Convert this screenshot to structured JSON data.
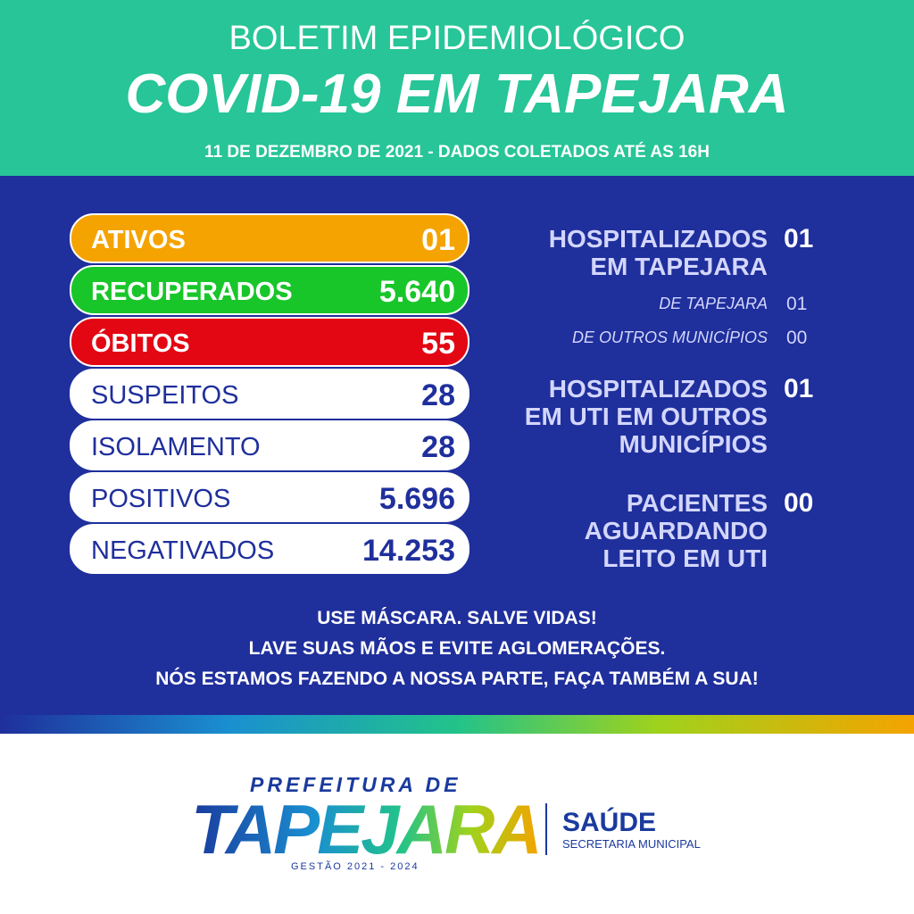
{
  "header": {
    "kicker": "BOLETIM EPIDEMIOLÓGICO",
    "title": "COVID-19 EM TAPEJARA",
    "date": "11 DE DEZEMBRO DE 2021 - DADOS COLETADOS ATÉ AS 16H"
  },
  "stats": [
    {
      "label": "ATIVOS",
      "value": "01"
    },
    {
      "label": "RECUPERADOS",
      "value": "5.640"
    },
    {
      "label": "ÓBITOS",
      "value": "55"
    },
    {
      "label": "SUSPEITOS",
      "value": "28"
    },
    {
      "label": "ISOLAMENTO",
      "value": "28"
    },
    {
      "label": "POSITIVOS",
      "value": "5.696"
    },
    {
      "label": "NEGATIVADOS",
      "value": "14.253"
    }
  ],
  "hospital": [
    {
      "lines": [
        "HOSPITALIZADOS",
        "EM TAPEJARA"
      ],
      "value": "01",
      "details": [
        {
          "label": "DE TAPEJARA",
          "value": "01"
        },
        {
          "label": "DE OUTROS MUNICÍPIOS",
          "value": "00"
        }
      ]
    },
    {
      "lines": [
        "HOSPITALIZADOS",
        "EM UTI EM OUTROS",
        "MUNICÍPIOS"
      ],
      "value": "01"
    },
    {
      "lines": [
        "PACIENTES",
        "AGUARDANDO",
        "LEITO EM UTI"
      ],
      "value": "00"
    }
  ],
  "messages": [
    "USE MÁSCARA. SALVE VIDAS!",
    "LAVE SUAS MÃOS E EVITE AGLOMERAÇÕES.",
    "NÓS ESTAMOS FAZENDO A NOSSA PARTE, FAÇA TAMBÉM A SUA!"
  ],
  "footer": {
    "prefeitura": "PREFEITURA DE",
    "city": "TAPEJARA",
    "gestao": "GESTÃO 2021 - 2024",
    "dept": "SAÚDE",
    "secretaria": "SECRETARIA MUNICIPAL"
  }
}
